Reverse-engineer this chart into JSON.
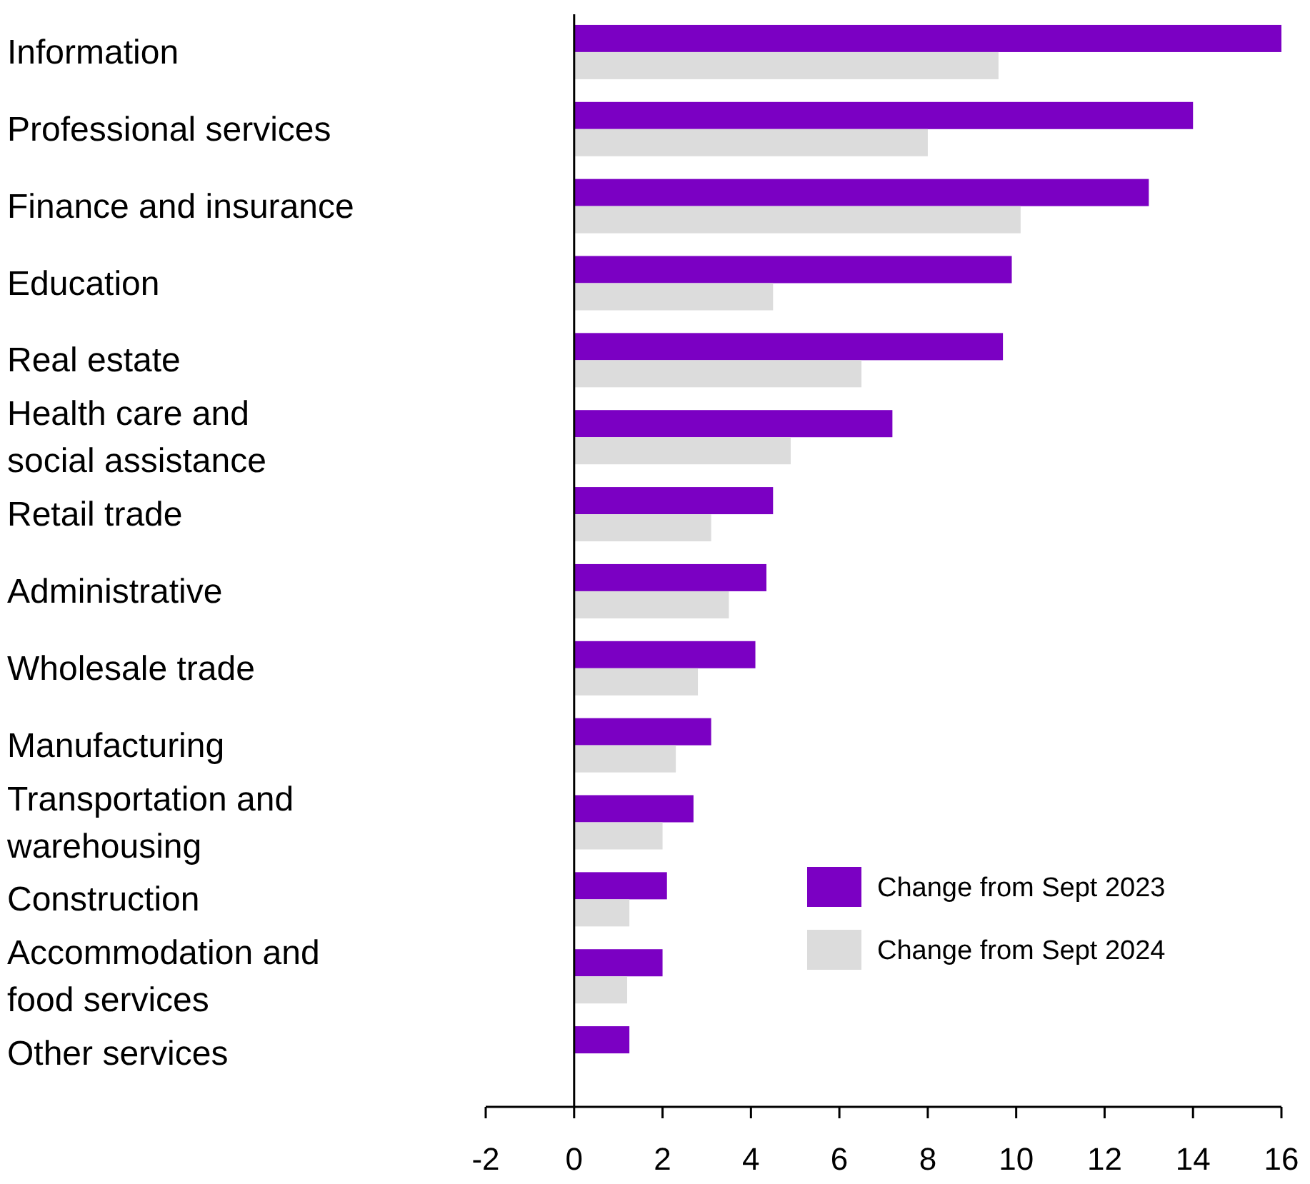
{
  "chart_data": {
    "type": "bar",
    "orientation": "horizontal",
    "categories": [
      "Information",
      "Professional services",
      "Finance and insurance",
      "Education",
      "Real estate",
      "Health care and social assistance",
      "Retail trade",
      "Administrative",
      "Wholesale trade",
      "Manufacturing",
      "Transportation and warehousing",
      "Construction",
      "Accommodation and food services",
      "Other services"
    ],
    "series": [
      {
        "name": "Change from Sept 2023",
        "color": "#7b00c3",
        "values": [
          16.0,
          14.0,
          13.0,
          9.9,
          9.7,
          7.2,
          4.5,
          4.35,
          4.1,
          3.1,
          2.7,
          2.1,
          2.0,
          1.25
        ]
      },
      {
        "name": "Change from Sept 2024",
        "color": "#dcdcdc",
        "values": [
          9.6,
          8.0,
          10.1,
          4.5,
          6.5,
          4.9,
          3.1,
          3.5,
          2.8,
          2.3,
          2.0,
          1.25,
          1.2,
          null
        ]
      }
    ],
    "xlim": [
      -2,
      16
    ],
    "xticks": [
      -2,
      0,
      2,
      4,
      6,
      8,
      10,
      12,
      14,
      16
    ],
    "legend": "bottom right"
  }
}
